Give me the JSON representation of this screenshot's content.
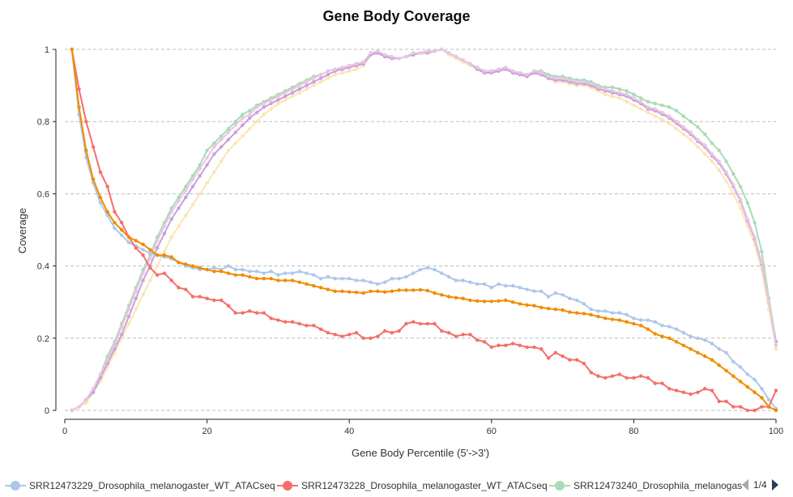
{
  "chart_data": {
    "type": "line",
    "title": "Gene Body Coverage",
    "xlabel": "Gene Body Percentile (5'->3')",
    "ylabel": "Coverage",
    "xlim": [
      0,
      100
    ],
    "ylim": [
      0,
      1
    ],
    "x_ticks": [
      "0",
      "20",
      "40",
      "60",
      "80",
      "100"
    ],
    "y_ticks": [
      "0",
      "0.2",
      "0.4",
      "0.6",
      "0.8",
      "1"
    ],
    "grid": "horizontal dashed",
    "legend_placement": "bottom",
    "legend_page": "1/4",
    "x_start": 1,
    "series": [
      {
        "color": "#a8dcb4",
        "values": [
          0,
          0.01,
          0.03,
          0.06,
          0.1,
          0.15,
          0.19,
          0.24,
          0.29,
          0.34,
          0.39,
          0.43,
          0.48,
          0.52,
          0.56,
          0.59,
          0.62,
          0.65,
          0.68,
          0.72,
          0.74,
          0.76,
          0.78,
          0.8,
          0.82,
          0.83,
          0.845,
          0.855,
          0.865,
          0.875,
          0.885,
          0.895,
          0.905,
          0.915,
          0.925,
          0.93,
          0.94,
          0.945,
          0.95,
          0.955,
          0.96,
          0.965,
          0.99,
          0.995,
          0.985,
          0.98,
          0.975,
          0.98,
          0.99,
          0.99,
          0.995,
          0.995,
          1.0,
          0.99,
          0.98,
          0.97,
          0.96,
          0.95,
          0.94,
          0.94,
          0.945,
          0.95,
          0.94,
          0.935,
          0.93,
          0.94,
          0.94,
          0.93,
          0.925,
          0.925,
          0.92,
          0.915,
          0.915,
          0.91,
          0.9,
          0.895,
          0.895,
          0.89,
          0.885,
          0.875,
          0.865,
          0.855,
          0.85,
          0.845,
          0.84,
          0.83,
          0.815,
          0.8,
          0.785,
          0.765,
          0.74,
          0.72,
          0.69,
          0.655,
          0.62,
          0.575,
          0.52,
          0.44,
          0.31,
          0.19
        ]
      },
      {
        "color": "#fbe5b6",
        "values": [
          0,
          0.01,
          0.02,
          0.05,
          0.08,
          0.12,
          0.16,
          0.2,
          0.24,
          0.28,
          0.32,
          0.36,
          0.4,
          0.44,
          0.48,
          0.51,
          0.54,
          0.57,
          0.6,
          0.63,
          0.66,
          0.69,
          0.72,
          0.74,
          0.76,
          0.78,
          0.8,
          0.82,
          0.835,
          0.85,
          0.86,
          0.87,
          0.88,
          0.89,
          0.9,
          0.91,
          0.92,
          0.93,
          0.935,
          0.94,
          0.945,
          0.955,
          0.985,
          0.99,
          0.98,
          0.975,
          0.975,
          0.98,
          0.985,
          0.99,
          0.99,
          0.995,
          1.0,
          0.985,
          0.975,
          0.965,
          0.955,
          0.945,
          0.935,
          0.935,
          0.94,
          0.945,
          0.935,
          0.93,
          0.925,
          0.935,
          0.93,
          0.92,
          0.91,
          0.91,
          0.905,
          0.9,
          0.9,
          0.895,
          0.885,
          0.875,
          0.87,
          0.865,
          0.855,
          0.845,
          0.835,
          0.825,
          0.815,
          0.805,
          0.795,
          0.78,
          0.765,
          0.75,
          0.73,
          0.71,
          0.69,
          0.665,
          0.635,
          0.6,
          0.56,
          0.51,
          0.46,
          0.39,
          0.28,
          0.17
        ]
      },
      {
        "color": "#c9a0dc",
        "values": [
          0,
          0.01,
          0.03,
          0.05,
          0.09,
          0.13,
          0.17,
          0.21,
          0.26,
          0.31,
          0.36,
          0.4,
          0.45,
          0.49,
          0.53,
          0.56,
          0.59,
          0.62,
          0.65,
          0.68,
          0.71,
          0.73,
          0.75,
          0.77,
          0.79,
          0.81,
          0.825,
          0.84,
          0.85,
          0.86,
          0.87,
          0.88,
          0.89,
          0.9,
          0.91,
          0.92,
          0.93,
          0.94,
          0.945,
          0.95,
          0.955,
          0.96,
          0.985,
          0.99,
          0.98,
          0.975,
          0.975,
          0.98,
          0.985,
          0.99,
          0.99,
          0.995,
          1.0,
          0.99,
          0.98,
          0.97,
          0.96,
          0.945,
          0.935,
          0.935,
          0.94,
          0.945,
          0.935,
          0.93,
          0.925,
          0.935,
          0.93,
          0.92,
          0.915,
          0.915,
          0.91,
          0.905,
          0.905,
          0.9,
          0.89,
          0.885,
          0.88,
          0.875,
          0.87,
          0.86,
          0.85,
          0.835,
          0.83,
          0.82,
          0.81,
          0.795,
          0.78,
          0.765,
          0.745,
          0.73,
          0.705,
          0.685,
          0.655,
          0.62,
          0.58,
          0.525,
          0.475,
          0.405,
          0.3,
          0.19
        ]
      },
      {
        "color": "#e8c6e2",
        "values": [
          0,
          0.01,
          0.03,
          0.06,
          0.1,
          0.14,
          0.18,
          0.23,
          0.28,
          0.33,
          0.38,
          0.42,
          0.47,
          0.51,
          0.55,
          0.58,
          0.61,
          0.64,
          0.67,
          0.7,
          0.73,
          0.75,
          0.77,
          0.79,
          0.81,
          0.82,
          0.84,
          0.85,
          0.86,
          0.87,
          0.88,
          0.89,
          0.9,
          0.91,
          0.92,
          0.93,
          0.94,
          0.945,
          0.95,
          0.955,
          0.96,
          0.965,
          0.99,
          0.995,
          0.985,
          0.98,
          0.975,
          0.98,
          0.99,
          0.99,
          0.995,
          0.995,
          1.0,
          0.99,
          0.98,
          0.97,
          0.96,
          0.95,
          0.94,
          0.94,
          0.945,
          0.95,
          0.94,
          0.935,
          0.93,
          0.94,
          0.935,
          0.925,
          0.92,
          0.92,
          0.915,
          0.91,
          0.91,
          0.905,
          0.895,
          0.89,
          0.885,
          0.88,
          0.875,
          0.865,
          0.855,
          0.84,
          0.835,
          0.825,
          0.815,
          0.8,
          0.785,
          0.77,
          0.75,
          0.735,
          0.71,
          0.69,
          0.66,
          0.625,
          0.585,
          0.53,
          0.48,
          0.41,
          0.3,
          0.18
        ]
      },
      {
        "name": "SRR12473229_Drosophila_melanogaster_WT_ATACseq",
        "color": "#aec7e8",
        "values": [
          1.0,
          0.82,
          0.7,
          0.63,
          0.575,
          0.54,
          0.505,
          0.485,
          0.465,
          0.455,
          0.445,
          0.435,
          0.43,
          0.425,
          0.42,
          0.41,
          0.4,
          0.395,
          0.39,
          0.39,
          0.395,
          0.39,
          0.4,
          0.39,
          0.39,
          0.385,
          0.385,
          0.38,
          0.385,
          0.375,
          0.38,
          0.38,
          0.385,
          0.38,
          0.375,
          0.365,
          0.37,
          0.365,
          0.365,
          0.365,
          0.36,
          0.36,
          0.355,
          0.35,
          0.355,
          0.365,
          0.365,
          0.37,
          0.38,
          0.39,
          0.395,
          0.39,
          0.38,
          0.37,
          0.36,
          0.36,
          0.355,
          0.35,
          0.35,
          0.34,
          0.35,
          0.345,
          0.345,
          0.34,
          0.335,
          0.33,
          0.33,
          0.315,
          0.325,
          0.32,
          0.31,
          0.305,
          0.295,
          0.28,
          0.275,
          0.275,
          0.27,
          0.27,
          0.265,
          0.255,
          0.25,
          0.25,
          0.245,
          0.235,
          0.232,
          0.225,
          0.215,
          0.205,
          0.2,
          0.195,
          0.185,
          0.17,
          0.16,
          0.135,
          0.12,
          0.1,
          0.085,
          0.06,
          0.03,
          0.005
        ]
      },
      {
        "name": "SRR12473228_Drosophila_melanogaster_WT_ATACseq",
        "color": "#f46f6b",
        "values": [
          1.0,
          0.89,
          0.8,
          0.73,
          0.66,
          0.62,
          0.55,
          0.52,
          0.48,
          0.45,
          0.43,
          0.395,
          0.375,
          0.38,
          0.36,
          0.34,
          0.335,
          0.315,
          0.315,
          0.31,
          0.305,
          0.305,
          0.29,
          0.27,
          0.27,
          0.275,
          0.27,
          0.27,
          0.255,
          0.25,
          0.245,
          0.245,
          0.24,
          0.235,
          0.235,
          0.225,
          0.215,
          0.21,
          0.205,
          0.21,
          0.215,
          0.2,
          0.2,
          0.205,
          0.22,
          0.215,
          0.22,
          0.24,
          0.245,
          0.24,
          0.24,
          0.24,
          0.22,
          0.215,
          0.205,
          0.21,
          0.21,
          0.195,
          0.19,
          0.175,
          0.18,
          0.18,
          0.185,
          0.18,
          0.175,
          0.175,
          0.17,
          0.145,
          0.16,
          0.15,
          0.14,
          0.14,
          0.13,
          0.105,
          0.095,
          0.09,
          0.095,
          0.1,
          0.09,
          0.09,
          0.095,
          0.09,
          0.075,
          0.075,
          0.06,
          0.055,
          0.05,
          0.045,
          0.05,
          0.06,
          0.055,
          0.025,
          0.025,
          0.01,
          0.01,
          0.0,
          0.0,
          0.01,
          0.01,
          0.055
        ]
      },
      {
        "color": "#f08c00",
        "values": [
          1.0,
          0.84,
          0.72,
          0.64,
          0.59,
          0.55,
          0.52,
          0.5,
          0.48,
          0.47,
          0.46,
          0.445,
          0.43,
          0.43,
          0.425,
          0.41,
          0.405,
          0.4,
          0.395,
          0.39,
          0.385,
          0.385,
          0.38,
          0.375,
          0.375,
          0.37,
          0.365,
          0.365,
          0.365,
          0.36,
          0.36,
          0.36,
          0.355,
          0.35,
          0.345,
          0.34,
          0.335,
          0.33,
          0.33,
          0.328,
          0.327,
          0.325,
          0.33,
          0.33,
          0.328,
          0.33,
          0.333,
          0.333,
          0.333,
          0.334,
          0.332,
          0.325,
          0.32,
          0.315,
          0.312,
          0.31,
          0.305,
          0.303,
          0.302,
          0.302,
          0.303,
          0.305,
          0.3,
          0.295,
          0.292,
          0.29,
          0.285,
          0.282,
          0.28,
          0.278,
          0.272,
          0.27,
          0.268,
          0.265,
          0.26,
          0.255,
          0.252,
          0.25,
          0.245,
          0.24,
          0.235,
          0.225,
          0.212,
          0.205,
          0.2,
          0.19,
          0.18,
          0.17,
          0.16,
          0.15,
          0.14,
          0.125,
          0.11,
          0.095,
          0.08,
          0.065,
          0.05,
          0.035,
          0.01,
          0.0
        ]
      }
    ],
    "legend": [
      {
        "name": "SRR12473229_Drosophila_melanogaster_WT_ATACseq",
        "color": "#aec7e8"
      },
      {
        "name": "SRR12473228_Drosophila_melanogaster_WT_ATACseq",
        "color": "#f46f6b"
      },
      {
        "name": "SRR12473240_Drosophila_melanogas",
        "color": "#a8dcb4"
      }
    ]
  }
}
